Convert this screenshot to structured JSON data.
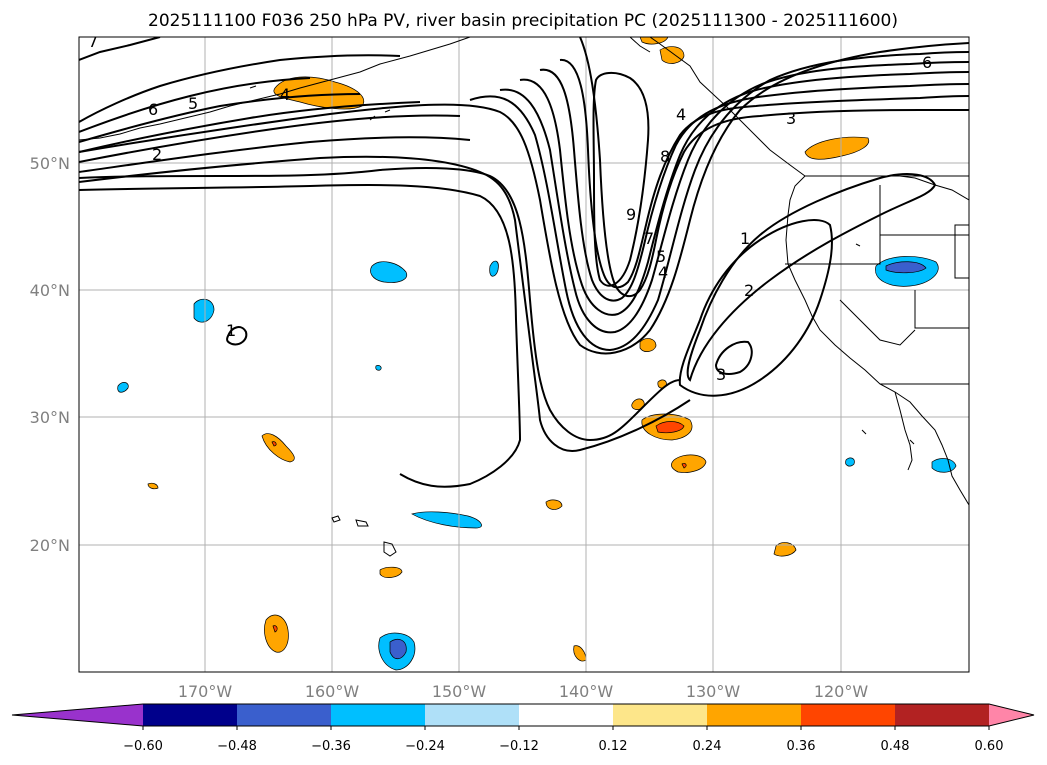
{
  "title": "2025111100 F036 250 hPa PV, river basin precipitation PC (2025111300 - 2025111600)",
  "map": {
    "lat_labels": [
      "50°N",
      "40°N",
      "30°N",
      "20°N"
    ],
    "lon_labels": [
      "170°W",
      "160°W",
      "150°W",
      "140°W",
      "130°W",
      "120°W"
    ],
    "pv_contour_labels": [
      "7",
      "6",
      "5",
      "4",
      "2",
      "1",
      "9",
      "7",
      "8",
      "4",
      "3",
      "6",
      "5",
      "4",
      "2",
      "1",
      "3"
    ],
    "line_color": "#000000",
    "grid_color": "#b0b0b0"
  },
  "colorbar": {
    "ticks": [
      "−0.60",
      "−0.48",
      "−0.36",
      "−0.24",
      "−0.12",
      "0.12",
      "0.24",
      "0.36",
      "0.48",
      "0.60"
    ],
    "colors": [
      "#9932cc",
      "#00008b",
      "#3a5fcd",
      "#00bfff",
      "#afe0f8",
      "#ffffff",
      "#fde68a",
      "#ffa500",
      "#ff4500",
      "#b22222",
      "#ff85a8"
    ]
  }
}
